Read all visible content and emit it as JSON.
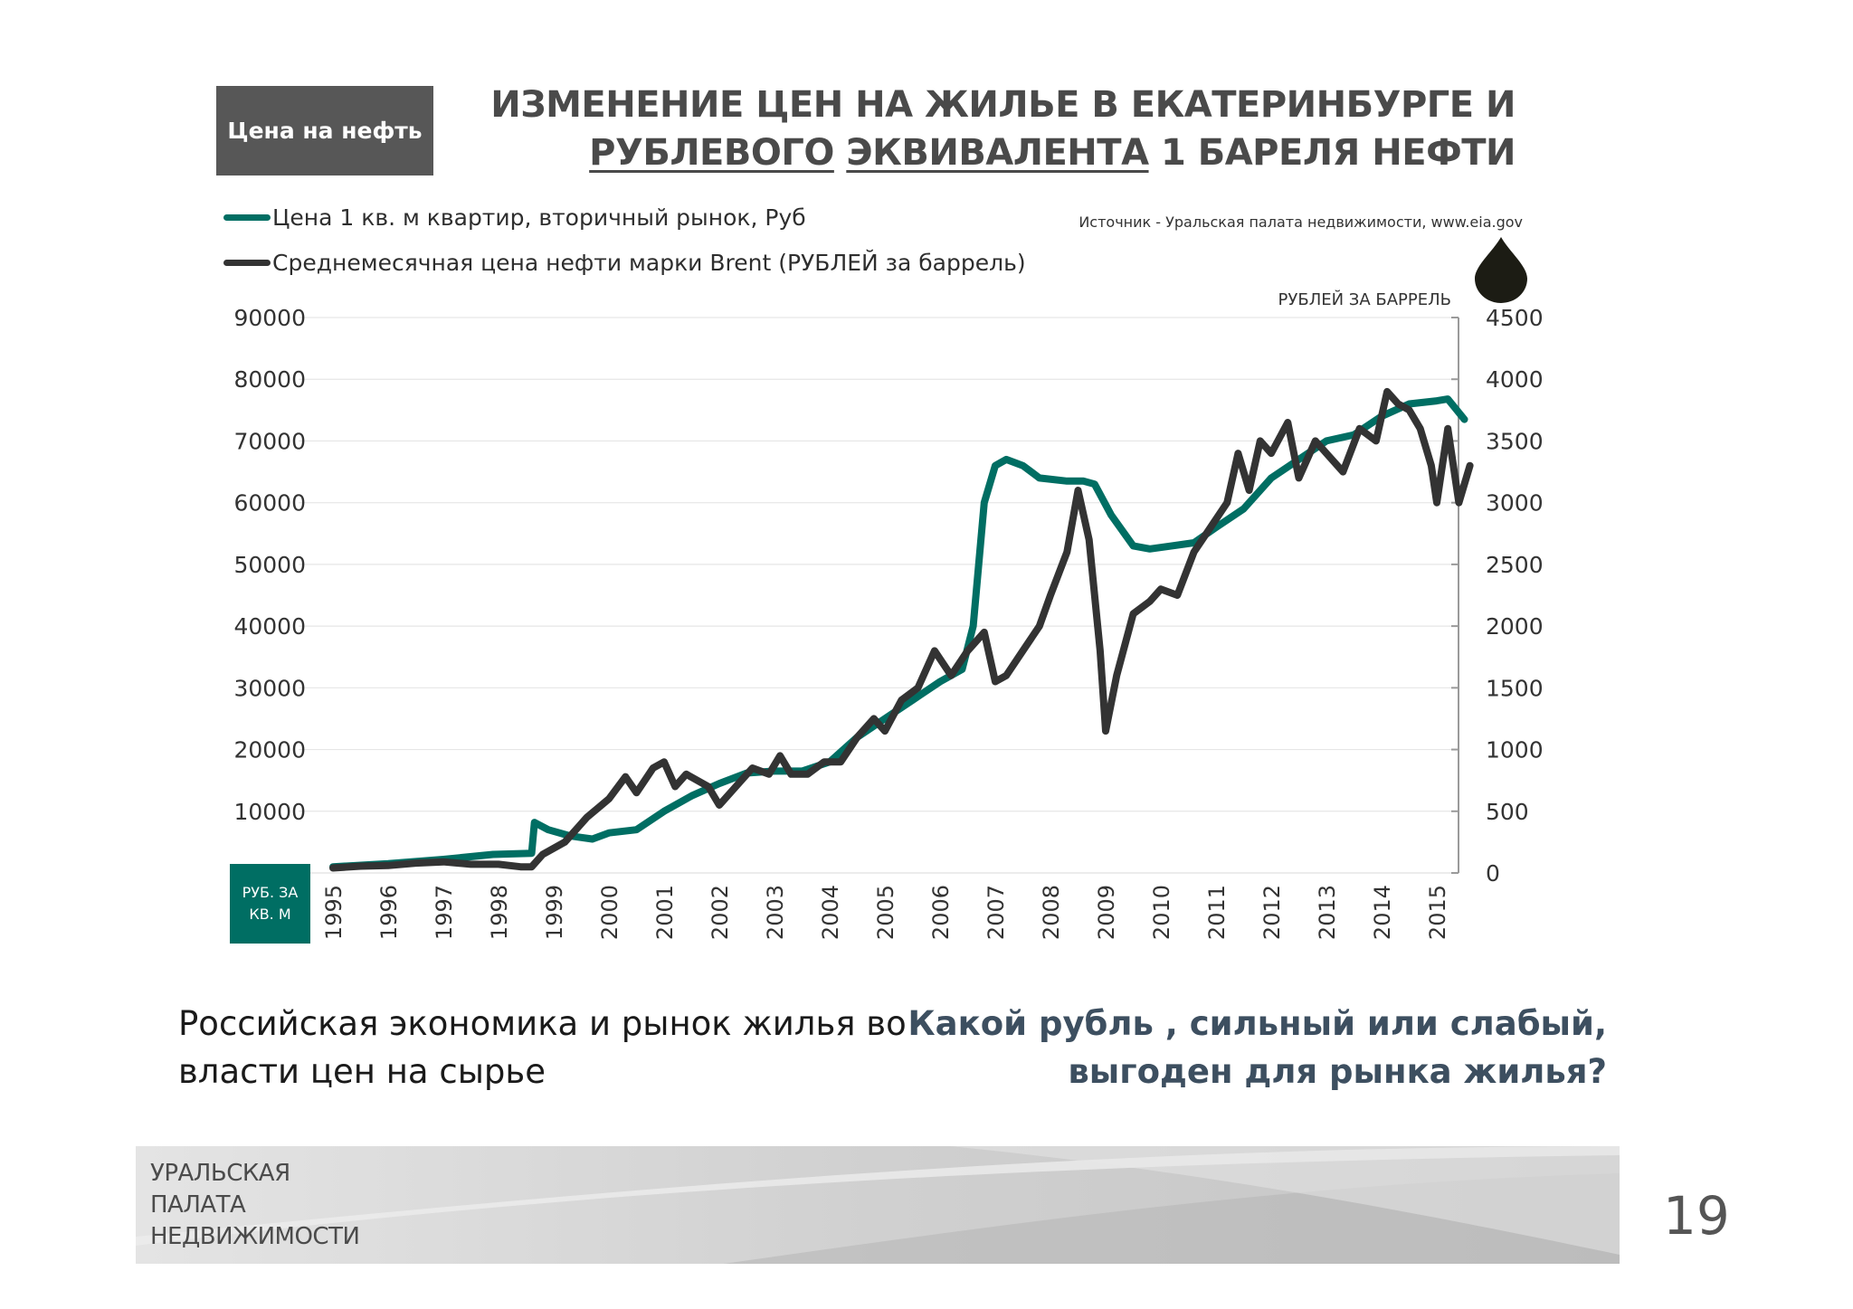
{
  "badge": "Цена на нефть",
  "title": {
    "line1": "ИЗМЕНЕНИЕ ЦЕН НА ЖИЛЬЕ В ЕКАТЕРИНБУРГЕ И",
    "line2_a": "РУБЛЕВОГО",
    "line2_b": "ЭКВИВАЛЕНТА",
    "line2_c": "1 БАРЕЛЯ НЕФТИ"
  },
  "source": "Источник - Уральская палата недвижимости, www.eia.gov",
  "right_axis_label": "РУБЛЕЙ ЗА БАРРЕЛЬ",
  "left_axis_box": {
    "line1": "РУБ. ЗА",
    "line2": "КВ. М"
  },
  "bottom_left": "Российская экономика и рынок жилья во власти цен на сырье",
  "bottom_right": {
    "line1": "Какой рубль , сильный или слабый,",
    "line2": "выгоден для рынка жилья?"
  },
  "footer": {
    "line1": "УРАЛЬСКАЯ",
    "line2": "ПАЛАТА",
    "line3": "НЕДВИЖИМОСТИ"
  },
  "page_number": "19",
  "colors": {
    "housing": "#006e63",
    "oil": "#333333",
    "badge": "#575757"
  },
  "icons": {
    "drop": "oil-drop-icon"
  },
  "chart_data": {
    "type": "line",
    "left_ylim": [
      0,
      90000
    ],
    "right_ylim": [
      0,
      4500
    ],
    "left_ticks": [
      "90000",
      "80000",
      "70000",
      "60000",
      "50000",
      "40000",
      "30000",
      "20000",
      "10000"
    ],
    "right_ticks": [
      "4500",
      "4000",
      "3500",
      "3000",
      "2500",
      "2000",
      "1500",
      "1000",
      "500",
      "0"
    ],
    "x_ticks": [
      "1995",
      "1996",
      "1997",
      "1998",
      "1999",
      "2000",
      "2001",
      "2002",
      "2003",
      "2004",
      "2005",
      "2006",
      "2007",
      "2008",
      "2009",
      "2010",
      "2011",
      "2012",
      "2013",
      "2014",
      "2015"
    ],
    "grid": true,
    "series": [
      {
        "name": "Цена 1 кв. м квартир, вторичный рынок, Руб",
        "axis": "left",
        "points": [
          [
            1995.0,
            1000
          ],
          [
            1996.0,
            1500
          ],
          [
            1997.0,
            2200
          ],
          [
            1997.9,
            3000
          ],
          [
            1998.6,
            3200
          ],
          [
            1998.65,
            8200
          ],
          [
            1998.9,
            7000
          ],
          [
            1999.3,
            6000
          ],
          [
            1999.7,
            5500
          ],
          [
            2000.0,
            6500
          ],
          [
            2000.5,
            7000
          ],
          [
            2001.0,
            10000
          ],
          [
            2001.5,
            12500
          ],
          [
            2002.0,
            14500
          ],
          [
            2002.5,
            16200
          ],
          [
            2003.0,
            16500
          ],
          [
            2003.5,
            16500
          ],
          [
            2004.0,
            18000
          ],
          [
            2004.5,
            22000
          ],
          [
            2005.0,
            25000
          ],
          [
            2005.5,
            28000
          ],
          [
            2006.0,
            31000
          ],
          [
            2006.4,
            33000
          ],
          [
            2006.6,
            40000
          ],
          [
            2006.7,
            50000
          ],
          [
            2006.8,
            60000
          ],
          [
            2007.0,
            66000
          ],
          [
            2007.2,
            67000
          ],
          [
            2007.5,
            66000
          ],
          [
            2007.8,
            64000
          ],
          [
            2008.3,
            63500
          ],
          [
            2008.6,
            63500
          ],
          [
            2008.8,
            63000
          ],
          [
            2009.1,
            58000
          ],
          [
            2009.5,
            53000
          ],
          [
            2009.8,
            52500
          ],
          [
            2010.2,
            53000
          ],
          [
            2010.6,
            53500
          ],
          [
            2011.0,
            56000
          ],
          [
            2011.5,
            59000
          ],
          [
            2012.0,
            64000
          ],
          [
            2012.5,
            67000
          ],
          [
            2013.0,
            70000
          ],
          [
            2013.5,
            71000
          ],
          [
            2014.0,
            74000
          ],
          [
            2014.5,
            76000
          ],
          [
            2015.0,
            76500
          ],
          [
            2015.2,
            76800
          ],
          [
            2015.5,
            73500
          ]
        ]
      },
      {
        "name": "Среднемесячная цена нефти марки Brent (РУБЛЕЙ за баррель)",
        "axis": "right",
        "points": [
          [
            1995.0,
            40
          ],
          [
            1995.5,
            55
          ],
          [
            1996.0,
            60
          ],
          [
            1996.5,
            80
          ],
          [
            1997.0,
            90
          ],
          [
            1997.5,
            70
          ],
          [
            1998.0,
            70
          ],
          [
            1998.4,
            50
          ],
          [
            1998.6,
            50
          ],
          [
            1998.8,
            150
          ],
          [
            1999.2,
            250
          ],
          [
            1999.6,
            450
          ],
          [
            2000.0,
            600
          ],
          [
            2000.3,
            780
          ],
          [
            2000.5,
            650
          ],
          [
            2000.8,
            850
          ],
          [
            2001.0,
            900
          ],
          [
            2001.2,
            700
          ],
          [
            2001.4,
            800
          ],
          [
            2001.8,
            700
          ],
          [
            2002.0,
            550
          ],
          [
            2002.3,
            700
          ],
          [
            2002.6,
            850
          ],
          [
            2002.9,
            800
          ],
          [
            2003.1,
            950
          ],
          [
            2003.3,
            800
          ],
          [
            2003.6,
            800
          ],
          [
            2003.9,
            900
          ],
          [
            2004.2,
            900
          ],
          [
            2004.5,
            1100
          ],
          [
            2004.8,
            1250
          ],
          [
            2005.0,
            1150
          ],
          [
            2005.3,
            1400
          ],
          [
            2005.6,
            1500
          ],
          [
            2005.9,
            1800
          ],
          [
            2006.2,
            1600
          ],
          [
            2006.5,
            1800
          ],
          [
            2006.8,
            1950
          ],
          [
            2007.0,
            1550
          ],
          [
            2007.2,
            1600
          ],
          [
            2007.5,
            1800
          ],
          [
            2007.8,
            2000
          ],
          [
            2008.0,
            2250
          ],
          [
            2008.3,
            2600
          ],
          [
            2008.5,
            3100
          ],
          [
            2008.7,
            2700
          ],
          [
            2008.9,
            1800
          ],
          [
            2009.0,
            1150
          ],
          [
            2009.2,
            1600
          ],
          [
            2009.5,
            2100
          ],
          [
            2009.8,
            2200
          ],
          [
            2010.0,
            2300
          ],
          [
            2010.3,
            2250
          ],
          [
            2010.6,
            2600
          ],
          [
            2010.9,
            2800
          ],
          [
            2011.2,
            3000
          ],
          [
            2011.4,
            3400
          ],
          [
            2011.6,
            3100
          ],
          [
            2011.8,
            3500
          ],
          [
            2012.0,
            3400
          ],
          [
            2012.3,
            3650
          ],
          [
            2012.5,
            3200
          ],
          [
            2012.8,
            3500
          ],
          [
            2013.0,
            3400
          ],
          [
            2013.3,
            3250
          ],
          [
            2013.6,
            3600
          ],
          [
            2013.9,
            3500
          ],
          [
            2014.1,
            3900
          ],
          [
            2014.3,
            3800
          ],
          [
            2014.5,
            3750
          ],
          [
            2014.7,
            3600
          ],
          [
            2014.9,
            3300
          ],
          [
            2015.0,
            3000
          ],
          [
            2015.2,
            3600
          ],
          [
            2015.4,
            3000
          ],
          [
            2015.6,
            3300
          ]
        ]
      }
    ]
  }
}
